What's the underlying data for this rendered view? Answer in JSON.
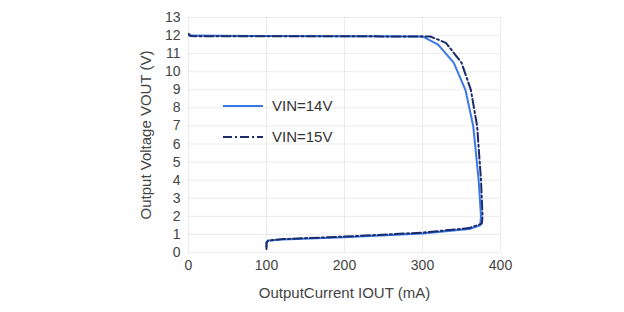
{
  "chart_data": {
    "type": "line",
    "xlabel": "OutputCurrent IOUT (mA)",
    "ylabel": "Output Voltage VOUT (V)",
    "xlim": [
      0,
      400
    ],
    "xticks": [
      0,
      100,
      200,
      300,
      400
    ],
    "ylim": [
      0,
      13
    ],
    "yticks": [
      0,
      1,
      2,
      3,
      4,
      5,
      6,
      7,
      8,
      9,
      10,
      11,
      12,
      13
    ],
    "grid": true,
    "legend": "left",
    "series": [
      {
        "name": "VIN=14V",
        "color": "#3b78e7",
        "line_style": "solid",
        "x": [
          0,
          100,
          200,
          300,
          320,
          340,
          355,
          365,
          372,
          375,
          374,
          360,
          300,
          200,
          120,
          102,
          100,
          100
        ],
        "values": [
          12.0,
          11.98,
          11.96,
          11.95,
          11.5,
          10.5,
          9.0,
          7.0,
          4.0,
          2.0,
          1.5,
          1.3,
          1.05,
          0.85,
          0.72,
          0.65,
          0.55,
          0.3
        ]
      },
      {
        "name": "VIN=15V",
        "color": "#1a2b6b",
        "line_style": "dashdot",
        "x": [
          0,
          3,
          100,
          200,
          310,
          330,
          350,
          362,
          370,
          375,
          377,
          376,
          360,
          300,
          200,
          120,
          102,
          100,
          100
        ],
        "values": [
          12.1,
          11.97,
          11.96,
          11.96,
          11.95,
          11.6,
          10.5,
          9.0,
          7.0,
          4.0,
          2.0,
          1.6,
          1.35,
          1.1,
          0.88,
          0.74,
          0.66,
          0.55,
          0.2
        ]
      }
    ]
  }
}
